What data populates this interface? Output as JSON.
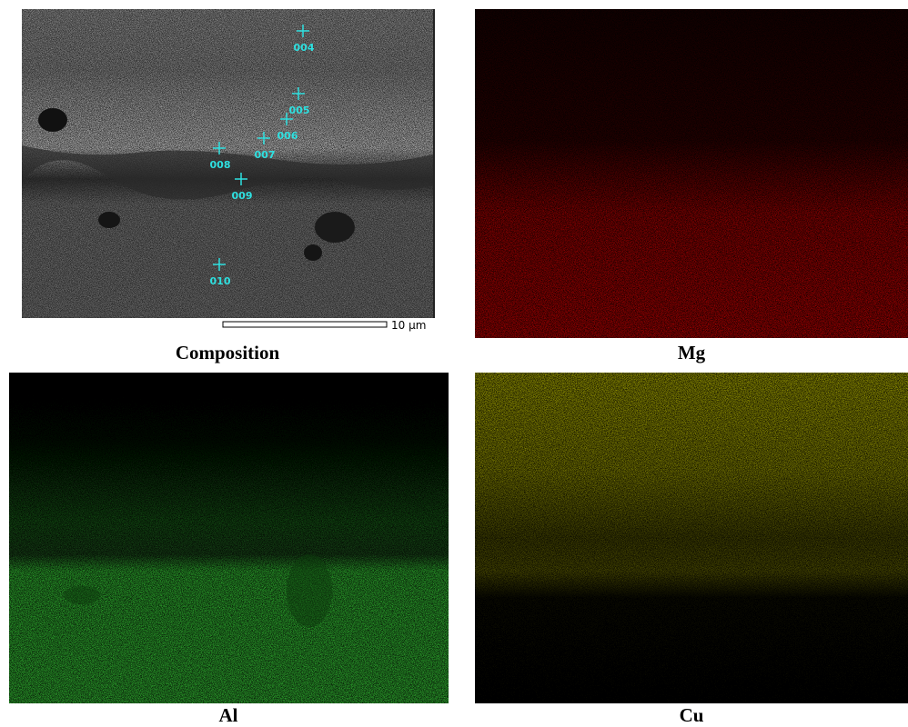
{
  "panels": [
    {
      "caption": "Composition",
      "scale_bar": "10 μm",
      "points": [
        {
          "label": "004"
        },
        {
          "label": "005"
        },
        {
          "label": "006"
        },
        {
          "label": "007"
        },
        {
          "label": "008"
        },
        {
          "label": "009"
        },
        {
          "label": "010"
        }
      ]
    },
    {
      "caption": "Mg"
    },
    {
      "caption": "Al"
    },
    {
      "caption": "Cu"
    }
  ]
}
